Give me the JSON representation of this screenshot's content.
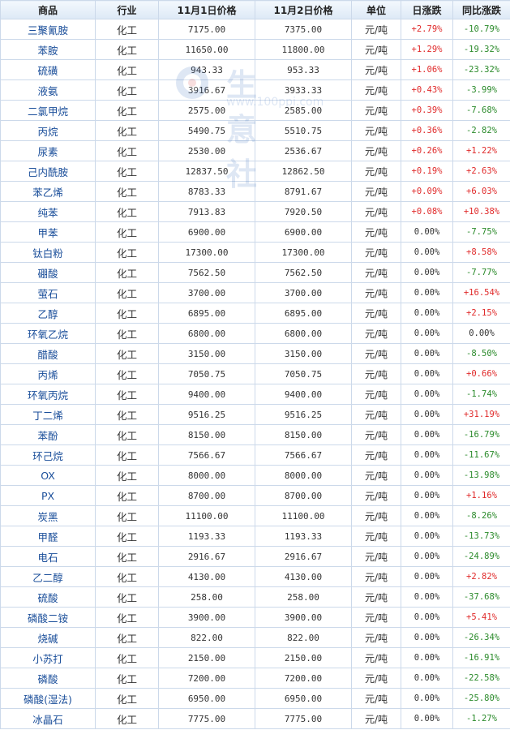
{
  "headers": {
    "product": "商品",
    "industry": "行业",
    "price_nov1": "11月1日价格",
    "price_nov2": "11月2日价格",
    "unit": "单位",
    "daily_change": "日涨跌",
    "yoy_change": "同比涨跌"
  },
  "watermark": {
    "text": "生意社",
    "url": "www.100ppi.com"
  },
  "colors": {
    "up": "#e02a2a",
    "down": "#2a8a2a",
    "link": "#1a4e9a",
    "border": "#ccd9ea"
  },
  "rows": [
    {
      "name": "三聚氰胺",
      "industry": "化工",
      "p1": "7175.00",
      "p2": "7375.00",
      "unit": "元/吨",
      "daily": "+2.79%",
      "yoy": "-10.79%"
    },
    {
      "name": "苯胺",
      "industry": "化工",
      "p1": "11650.00",
      "p2": "11800.00",
      "unit": "元/吨",
      "daily": "+1.29%",
      "yoy": "-19.32%"
    },
    {
      "name": "硫磺",
      "industry": "化工",
      "p1": "943.33",
      "p2": "953.33",
      "unit": "元/吨",
      "daily": "+1.06%",
      "yoy": "-23.32%"
    },
    {
      "name": "液氨",
      "industry": "化工",
      "p1": "3916.67",
      "p2": "3933.33",
      "unit": "元/吨",
      "daily": "+0.43%",
      "yoy": "-3.99%"
    },
    {
      "name": "二氯甲烷",
      "industry": "化工",
      "p1": "2575.00",
      "p2": "2585.00",
      "unit": "元/吨",
      "daily": "+0.39%",
      "yoy": "-7.68%"
    },
    {
      "name": "丙烷",
      "industry": "化工",
      "p1": "5490.75",
      "p2": "5510.75",
      "unit": "元/吨",
      "daily": "+0.36%",
      "yoy": "-2.82%"
    },
    {
      "name": "尿素",
      "industry": "化工",
      "p1": "2530.00",
      "p2": "2536.67",
      "unit": "元/吨",
      "daily": "+0.26%",
      "yoy": "+1.22%"
    },
    {
      "name": "己内酰胺",
      "industry": "化工",
      "p1": "12837.50",
      "p2": "12862.50",
      "unit": "元/吨",
      "daily": "+0.19%",
      "yoy": "+2.63%"
    },
    {
      "name": "苯乙烯",
      "industry": "化工",
      "p1": "8783.33",
      "p2": "8791.67",
      "unit": "元/吨",
      "daily": "+0.09%",
      "yoy": "+6.03%"
    },
    {
      "name": "纯苯",
      "industry": "化工",
      "p1": "7913.83",
      "p2": "7920.50",
      "unit": "元/吨",
      "daily": "+0.08%",
      "yoy": "+10.38%"
    },
    {
      "name": "甲苯",
      "industry": "化工",
      "p1": "6900.00",
      "p2": "6900.00",
      "unit": "元/吨",
      "daily": "0.00%",
      "yoy": "-7.75%"
    },
    {
      "name": "钛白粉",
      "industry": "化工",
      "p1": "17300.00",
      "p2": "17300.00",
      "unit": "元/吨",
      "daily": "0.00%",
      "yoy": "+8.58%"
    },
    {
      "name": "硼酸",
      "industry": "化工",
      "p1": "7562.50",
      "p2": "7562.50",
      "unit": "元/吨",
      "daily": "0.00%",
      "yoy": "-7.77%"
    },
    {
      "name": "萤石",
      "industry": "化工",
      "p1": "3700.00",
      "p2": "3700.00",
      "unit": "元/吨",
      "daily": "0.00%",
      "yoy": "+16.54%"
    },
    {
      "name": "乙醇",
      "industry": "化工",
      "p1": "6895.00",
      "p2": "6895.00",
      "unit": "元/吨",
      "daily": "0.00%",
      "yoy": "+2.15%"
    },
    {
      "name": "环氧乙烷",
      "industry": "化工",
      "p1": "6800.00",
      "p2": "6800.00",
      "unit": "元/吨",
      "daily": "0.00%",
      "yoy": "0.00%"
    },
    {
      "name": "醋酸",
      "industry": "化工",
      "p1": "3150.00",
      "p2": "3150.00",
      "unit": "元/吨",
      "daily": "0.00%",
      "yoy": "-8.50%"
    },
    {
      "name": "丙烯",
      "industry": "化工",
      "p1": "7050.75",
      "p2": "7050.75",
      "unit": "元/吨",
      "daily": "0.00%",
      "yoy": "+0.66%"
    },
    {
      "name": "环氧丙烷",
      "industry": "化工",
      "p1": "9400.00",
      "p2": "9400.00",
      "unit": "元/吨",
      "daily": "0.00%",
      "yoy": "-1.74%"
    },
    {
      "name": "丁二烯",
      "industry": "化工",
      "p1": "9516.25",
      "p2": "9516.25",
      "unit": "元/吨",
      "daily": "0.00%",
      "yoy": "+31.19%"
    },
    {
      "name": "苯酚",
      "industry": "化工",
      "p1": "8150.00",
      "p2": "8150.00",
      "unit": "元/吨",
      "daily": "0.00%",
      "yoy": "-16.79%"
    },
    {
      "name": "环己烷",
      "industry": "化工",
      "p1": "7566.67",
      "p2": "7566.67",
      "unit": "元/吨",
      "daily": "0.00%",
      "yoy": "-11.67%"
    },
    {
      "name": "OX",
      "industry": "化工",
      "p1": "8000.00",
      "p2": "8000.00",
      "unit": "元/吨",
      "daily": "0.00%",
      "yoy": "-13.98%"
    },
    {
      "name": "PX",
      "industry": "化工",
      "p1": "8700.00",
      "p2": "8700.00",
      "unit": "元/吨",
      "daily": "0.00%",
      "yoy": "+1.16%"
    },
    {
      "name": "炭黑",
      "industry": "化工",
      "p1": "11100.00",
      "p2": "11100.00",
      "unit": "元/吨",
      "daily": "0.00%",
      "yoy": "-8.26%"
    },
    {
      "name": "甲醛",
      "industry": "化工",
      "p1": "1193.33",
      "p2": "1193.33",
      "unit": "元/吨",
      "daily": "0.00%",
      "yoy": "-13.73%"
    },
    {
      "name": "电石",
      "industry": "化工",
      "p1": "2916.67",
      "p2": "2916.67",
      "unit": "元/吨",
      "daily": "0.00%",
      "yoy": "-24.89%"
    },
    {
      "name": "乙二醇",
      "industry": "化工",
      "p1": "4130.00",
      "p2": "4130.00",
      "unit": "元/吨",
      "daily": "0.00%",
      "yoy": "+2.82%"
    },
    {
      "name": "硫酸",
      "industry": "化工",
      "p1": "258.00",
      "p2": "258.00",
      "unit": "元/吨",
      "daily": "0.00%",
      "yoy": "-37.68%"
    },
    {
      "name": "磷酸二铵",
      "industry": "化工",
      "p1": "3900.00",
      "p2": "3900.00",
      "unit": "元/吨",
      "daily": "0.00%",
      "yoy": "+5.41%"
    },
    {
      "name": "烧碱",
      "industry": "化工",
      "p1": "822.00",
      "p2": "822.00",
      "unit": "元/吨",
      "daily": "0.00%",
      "yoy": "-26.34%"
    },
    {
      "name": "小苏打",
      "industry": "化工",
      "p1": "2150.00",
      "p2": "2150.00",
      "unit": "元/吨",
      "daily": "0.00%",
      "yoy": "-16.91%"
    },
    {
      "name": "磷酸",
      "industry": "化工",
      "p1": "7200.00",
      "p2": "7200.00",
      "unit": "元/吨",
      "daily": "0.00%",
      "yoy": "-22.58%"
    },
    {
      "name": "磷酸(湿法)",
      "industry": "化工",
      "p1": "6950.00",
      "p2": "6950.00",
      "unit": "元/吨",
      "daily": "0.00%",
      "yoy": "-25.80%"
    },
    {
      "name": "冰晶石",
      "industry": "化工",
      "p1": "7775.00",
      "p2": "7775.00",
      "unit": "元/吨",
      "daily": "0.00%",
      "yoy": "-1.27%"
    }
  ]
}
